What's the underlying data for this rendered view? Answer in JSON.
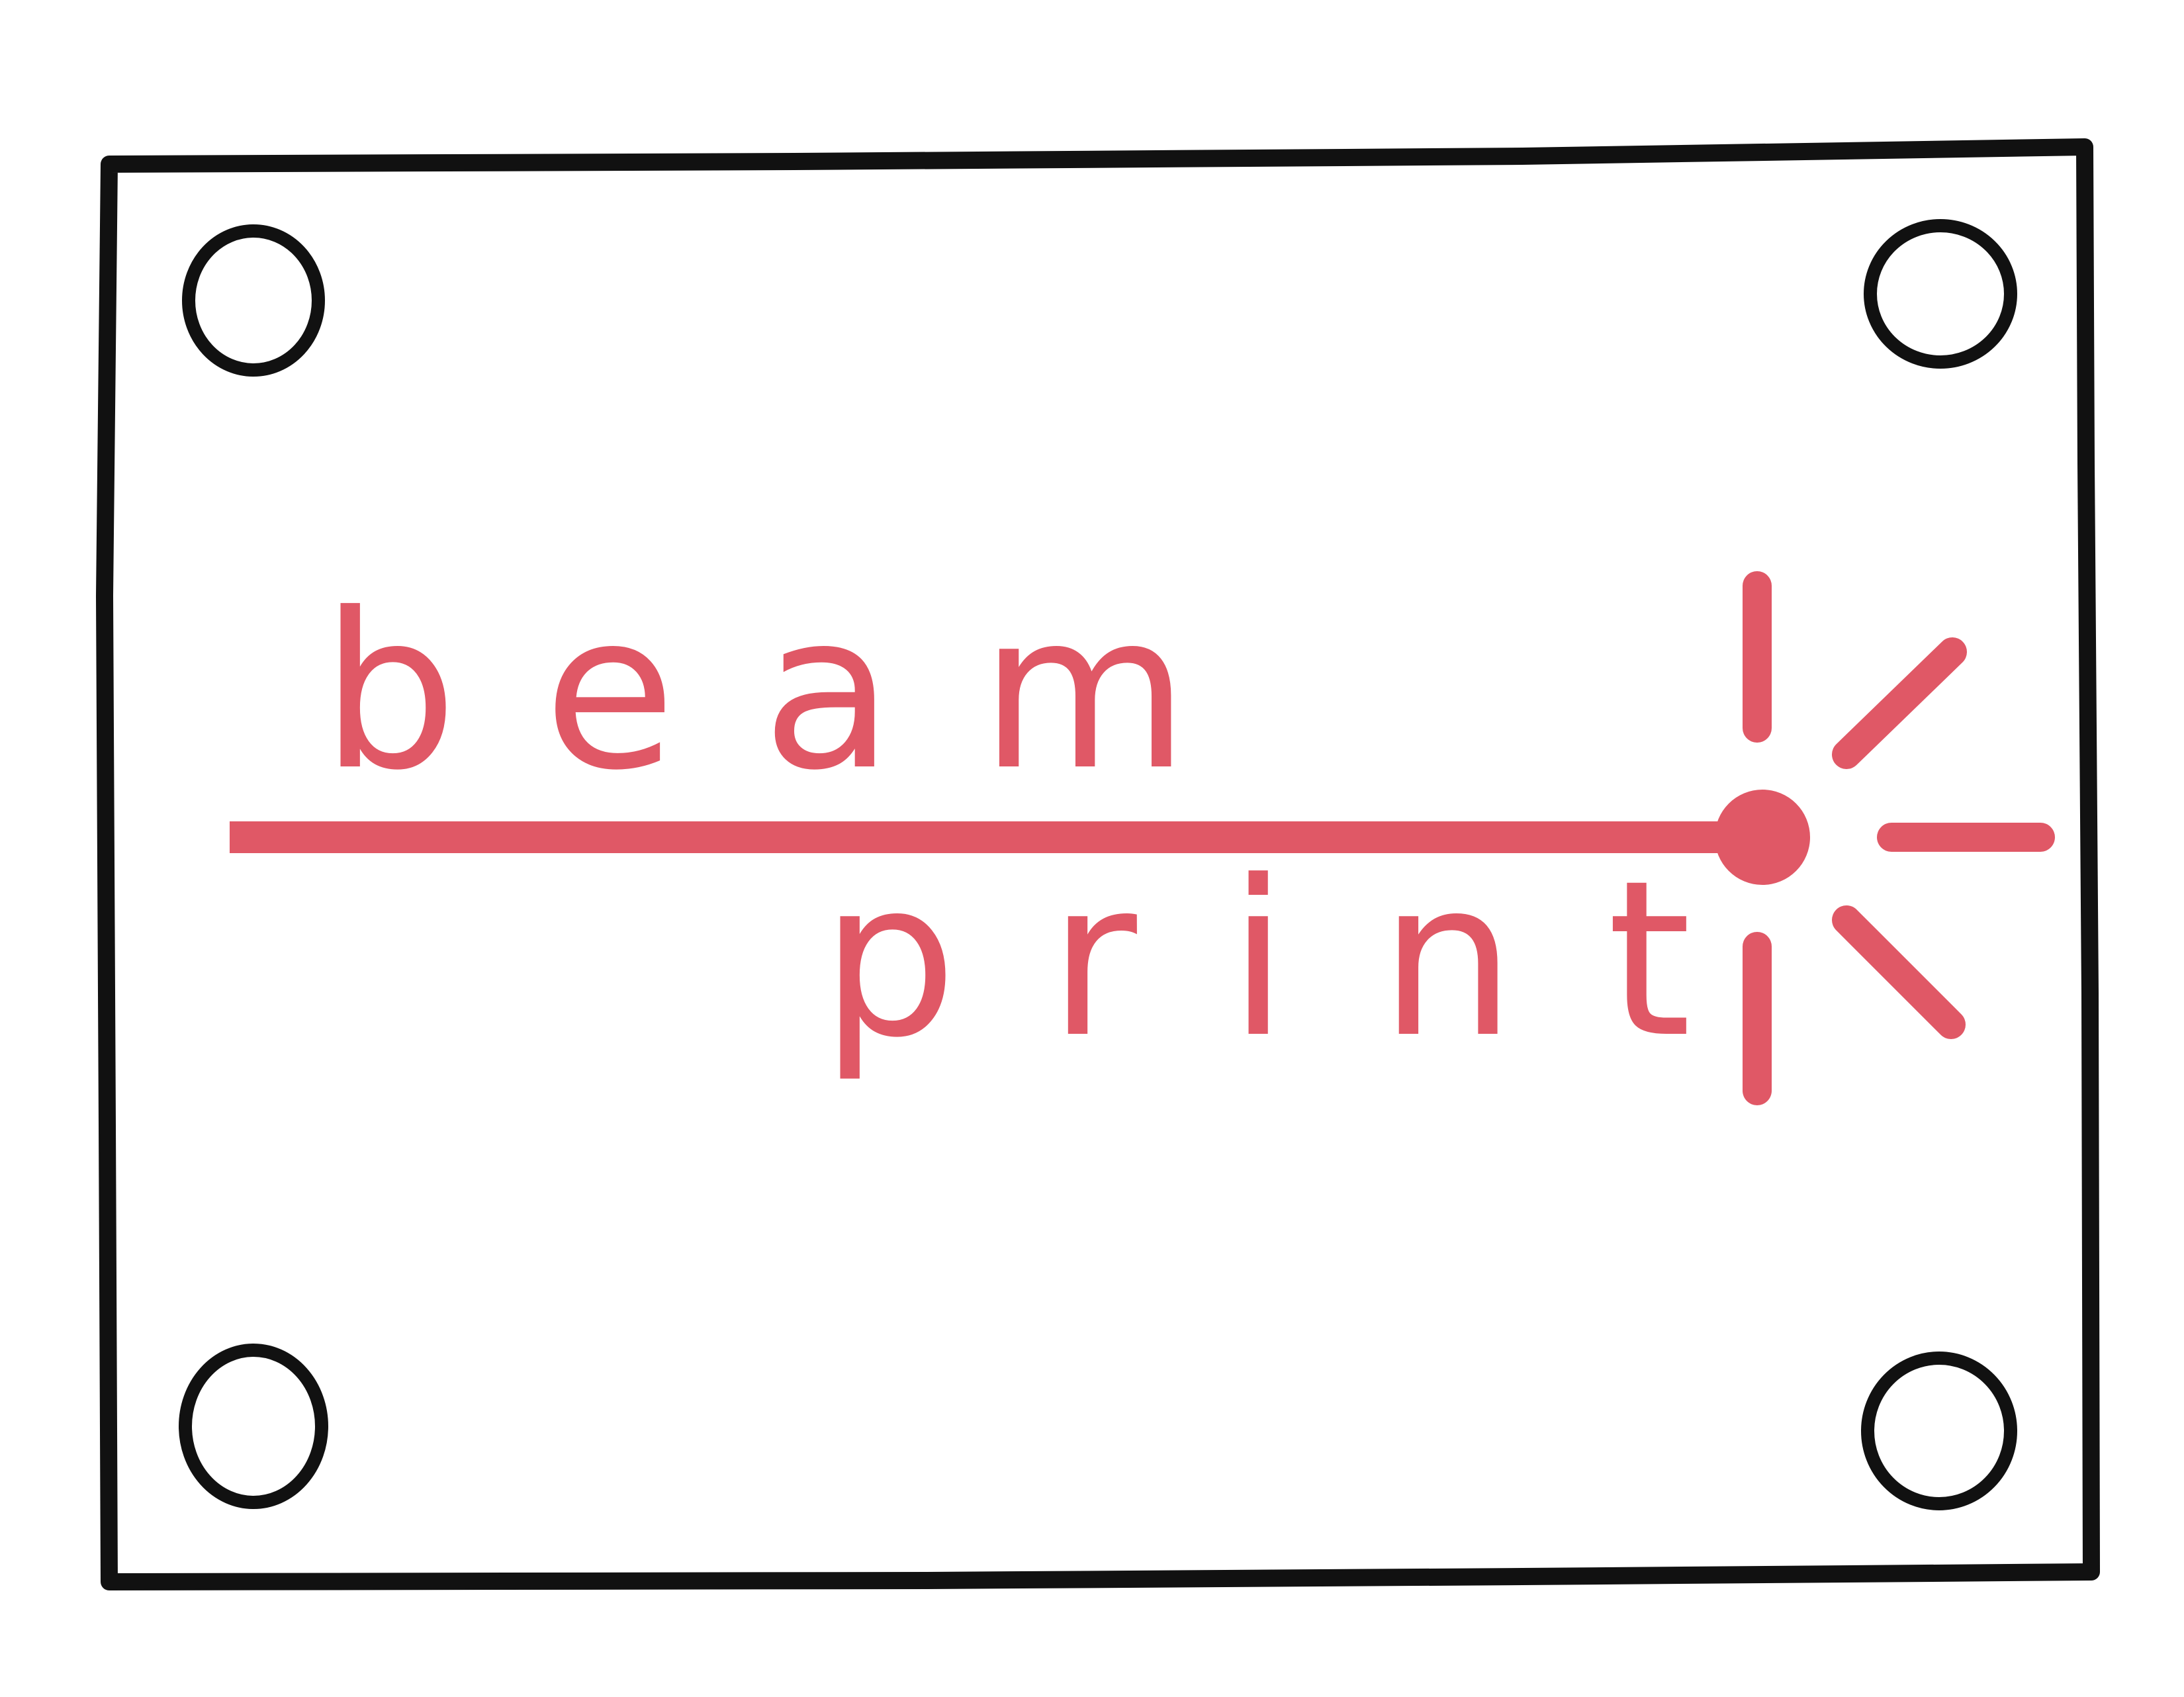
{
  "logo": {
    "word_top": "beam",
    "word_bottom": "print",
    "colors": {
      "accent": "#e05866",
      "frame": "#111111",
      "background": "#ffffff"
    }
  },
  "decor": {
    "corner_marks": [
      "corner-hole-icon",
      "corner-hole-icon",
      "corner-hole-icon",
      "corner-hole-icon"
    ],
    "burst": "light-burst-icon"
  }
}
